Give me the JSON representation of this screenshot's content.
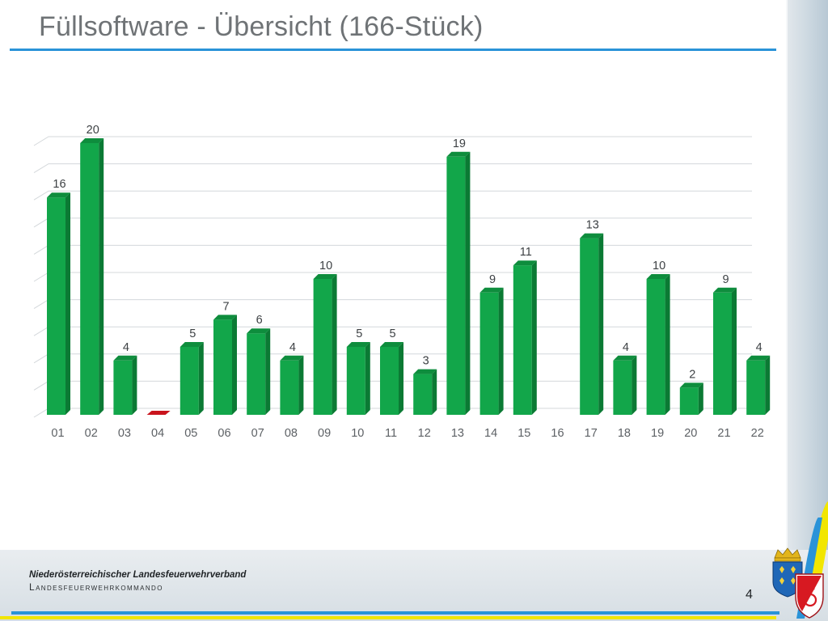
{
  "slide": {
    "title": "Füllsoftware - Übersicht (166-Stück)",
    "page_number": "4"
  },
  "footer": {
    "organization": "Niederösterreichischer Landesfeuerwehrverband",
    "subtitle": "Landesfeuerwehrkommando"
  },
  "icons": {
    "logo": "coat-of-arms-icon"
  },
  "colors": {
    "bar": "#12a64a",
    "bar_zero": "#c9141d",
    "accent_blue": "#2a93d8",
    "accent_yellow": "#f2e600"
  },
  "chart_data": {
    "type": "bar",
    "title": "",
    "xlabel": "",
    "ylabel": "",
    "categories": [
      "01",
      "02",
      "03",
      "04",
      "05",
      "06",
      "07",
      "08",
      "09",
      "10",
      "11",
      "12",
      "13",
      "14",
      "15",
      "16",
      "17",
      "18",
      "19",
      "20",
      "21",
      "22"
    ],
    "values": [
      16,
      20,
      4,
      0,
      5,
      7,
      6,
      4,
      10,
      5,
      5,
      3,
      19,
      9,
      11,
      null,
      13,
      4,
      10,
      2,
      9,
      4
    ],
    "data_labels": [
      "16",
      "20",
      "4",
      "",
      "5",
      "7",
      "6",
      "4",
      "10",
      "5",
      "5",
      "3",
      "19",
      "9",
      "11",
      "",
      "13",
      "4",
      "10",
      "2",
      "9",
      "4"
    ],
    "ylim": [
      0,
      20
    ],
    "grid": true,
    "legend": "none",
    "style": "3d-column"
  }
}
